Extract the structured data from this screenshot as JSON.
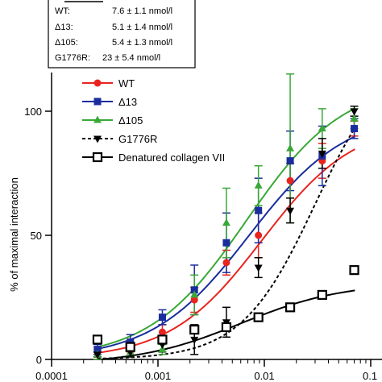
{
  "chart_data": {
    "type": "scatter",
    "title": "",
    "xlabel": "",
    "ylabel": "% of maximal interaction",
    "xscale": "log",
    "xlim": [
      0.0001,
      0.1
    ],
    "ylim": [
      0,
      115
    ],
    "x_ticks": [
      {
        "value": 0.0001,
        "label": "0.0001"
      },
      {
        "value": 0.001,
        "label": "0.001"
      },
      {
        "value": 0.01,
        "label": "0.01"
      },
      {
        "value": 0.1,
        "label": "0.1"
      }
    ],
    "y_ticks": [
      {
        "value": 0,
        "label": "0"
      },
      {
        "value": 50,
        "label": "50"
      },
      {
        "value": 100,
        "label": "100"
      }
    ],
    "kd_box": {
      "rows": [
        {
          "name": "WT:",
          "value": "7.6 ± 1.1 nmol/l"
        },
        {
          "name": "Δ13:",
          "value": "5.1 ± 1.4 nmol/l"
        },
        {
          "name": "Δ105:",
          "value": "5.4 ± 1.3 nmol/l"
        },
        {
          "name": "G1776R:",
          "value": "23 ± 5.4 nmol/l"
        }
      ]
    },
    "legend_position": "upper-left",
    "x": [
      0.00027,
      0.00055,
      0.0011,
      0.0022,
      0.0044,
      0.0088,
      0.0175,
      0.035,
      0.07
    ],
    "series": [
      {
        "name": "WT",
        "color": "#e8241f",
        "marker": "circle",
        "line": "solid",
        "values": [
          3,
          5,
          11,
          24,
          39,
          50,
          72,
          80,
          93
        ],
        "errors": [
          2,
          2,
          3,
          5,
          5,
          9,
          7,
          7,
          3
        ]
      },
      {
        "name": "Δ13",
        "color": "#1a2d9e",
        "marker": "square",
        "line": "solid",
        "values": [
          4,
          7,
          17,
          28,
          47,
          60,
          80,
          82,
          93
        ],
        "errors": [
          2,
          3,
          3,
          10,
          12,
          13,
          12,
          12,
          4
        ]
      },
      {
        "name": "Δ105",
        "color": "#3aa838",
        "marker": "triangle-up",
        "line": "solid",
        "values": [
          2,
          3,
          4,
          26,
          55,
          70,
          85,
          93,
          97
        ],
        "errors": [
          2,
          2,
          2,
          8,
          14,
          8,
          30,
          8,
          4
        ]
      },
      {
        "name": "G1776R",
        "color": "#000000",
        "marker": "triangle-down",
        "line": "dashed",
        "values": [
          2,
          3,
          6,
          8,
          15,
          37,
          60,
          83,
          100
        ],
        "errors": [
          1,
          2,
          3,
          6,
          6,
          4,
          5,
          6,
          2
        ]
      },
      {
        "name": "Denatured collagen VII",
        "color": "#000000",
        "marker": "open-square",
        "line": "solid",
        "values": [
          8,
          5,
          8,
          12,
          13,
          17,
          21,
          26,
          36
        ],
        "errors": [
          0,
          0,
          0,
          0,
          0,
          0,
          0,
          0,
          0
        ]
      }
    ]
  }
}
